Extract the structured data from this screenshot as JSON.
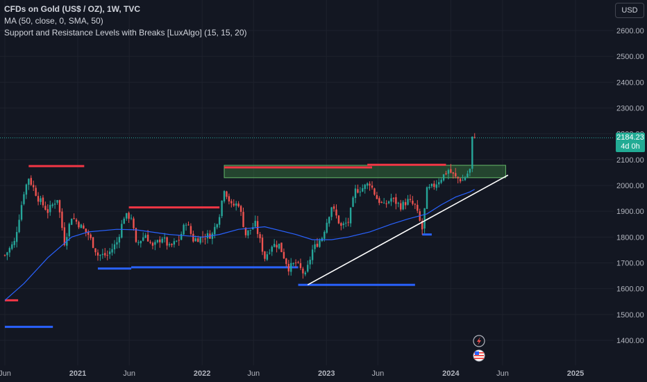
{
  "legend": {
    "title": "CFDs on Gold (US$ / OZ), 1W, TVC",
    "line2": "MA (50, close, 0, SMA, 50)",
    "line3": "Support and Resistance Levels with Breaks [LuxAlgo] (15, 15, 20)"
  },
  "currency": "USD",
  "price_label": {
    "price": "2184.23",
    "countdown": "4d 0h"
  },
  "colors": {
    "background": "#131722",
    "up": "#26a69a",
    "down": "#ef5350",
    "ma": "#2962ff",
    "resistance": "#f23645",
    "support": "#2962ff",
    "trendline": "#ffffff",
    "zone_fill": "#4caf50",
    "text": "#b2b5be"
  },
  "event_icons": [
    "lightning-icon",
    "us-flag-icon"
  ],
  "chart_data": {
    "type": "candlestick",
    "y_axis": {
      "ticks": [
        "2600.00",
        "2500.00",
        "2400.00",
        "2300.00",
        "2200.00",
        "2100.00",
        "2000.00",
        "1900.00",
        "1800.00",
        "1700.00",
        "1600.00",
        "1500.00",
        "1400.00"
      ],
      "range": [
        1350,
        2690
      ]
    },
    "x_axis": {
      "labels": [
        "Jun",
        "2021",
        "Jun",
        "2022",
        "Jun",
        "2023",
        "Jun",
        "2024",
        "Jun",
        "2025"
      ],
      "label_dates": [
        "2020-06-01",
        "2021-01-01",
        "2021-06-01",
        "2022-01-01",
        "2022-06-01",
        "2023-01-01",
        "2023-06-01",
        "2024-01-01",
        "2024-06-01",
        "2025-01-01"
      ]
    },
    "last_price": 2184.23,
    "close_path": [
      [
        "2020-06-01",
        1730
      ],
      [
        "2020-06-29",
        1780
      ],
      [
        "2020-07-27",
        1975
      ],
      [
        "2020-08-10",
        2030
      ],
      [
        "2020-09-07",
        1950
      ],
      [
        "2020-10-05",
        1900
      ],
      [
        "2020-11-02",
        1950
      ],
      [
        "2020-11-23",
        1780
      ],
      [
        "2020-12-14",
        1880
      ],
      [
        "2021-01-04",
        1850
      ],
      [
        "2021-02-01",
        1810
      ],
      [
        "2021-03-01",
        1730
      ],
      [
        "2021-03-29",
        1730
      ],
      [
        "2021-04-26",
        1780
      ],
      [
        "2021-05-17",
        1880
      ],
      [
        "2021-06-07",
        1880
      ],
      [
        "2021-06-21",
        1770
      ],
      [
        "2021-07-19",
        1810
      ],
      [
        "2021-08-09",
        1760
      ],
      [
        "2021-09-06",
        1800
      ],
      [
        "2021-09-27",
        1760
      ],
      [
        "2021-10-25",
        1790
      ],
      [
        "2021-11-15",
        1860
      ],
      [
        "2021-12-06",
        1790
      ],
      [
        "2022-01-03",
        1800
      ],
      [
        "2022-01-31",
        1810
      ],
      [
        "2022-02-21",
        1890
      ],
      [
        "2022-03-07",
        1990
      ],
      [
        "2022-03-28",
        1920
      ],
      [
        "2022-04-18",
        1930
      ],
      [
        "2022-05-09",
        1810
      ],
      [
        "2022-06-06",
        1850
      ],
      [
        "2022-07-04",
        1720
      ],
      [
        "2022-07-25",
        1770
      ],
      [
        "2022-08-15",
        1770
      ],
      [
        "2022-09-12",
        1680
      ],
      [
        "2022-10-03",
        1700
      ],
      [
        "2022-10-31",
        1650
      ],
      [
        "2022-11-21",
        1750
      ],
      [
        "2022-12-19",
        1800
      ],
      [
        "2023-01-16",
        1920
      ],
      [
        "2023-02-13",
        1840
      ],
      [
        "2023-03-06",
        1860
      ],
      [
        "2023-03-27",
        1980
      ],
      [
        "2023-04-17",
        1990
      ],
      [
        "2023-05-08",
        2010
      ],
      [
        "2023-05-29",
        1950
      ],
      [
        "2023-06-19",
        1920
      ],
      [
        "2023-07-10",
        1950
      ],
      [
        "2023-08-07",
        1920
      ],
      [
        "2023-08-28",
        1940
      ],
      [
        "2023-09-18",
        1920
      ],
      [
        "2023-10-09",
        1830
      ],
      [
        "2023-10-23",
        1980
      ],
      [
        "2023-11-13",
        2000
      ],
      [
        "2023-12-04",
        2030
      ],
      [
        "2023-12-25",
        2060
      ],
      [
        "2024-01-15",
        2030
      ],
      [
        "2024-02-05",
        2020
      ],
      [
        "2024-02-26",
        2060
      ],
      [
        "2024-03-04",
        2180
      ],
      [
        "2024-03-11",
        2184.23
      ]
    ],
    "moving_average": {
      "name": "MA (50, close, 0, SMA, 50)",
      "points": [
        [
          "2020-06-01",
          1555
        ],
        [
          "2020-07-27",
          1620
        ],
        [
          "2020-10-05",
          1720
        ],
        [
          "2020-12-14",
          1800
        ],
        [
          "2021-02-01",
          1820
        ],
        [
          "2021-04-26",
          1830
        ],
        [
          "2021-06-21",
          1828
        ],
        [
          "2021-09-27",
          1810
        ],
        [
          "2022-01-03",
          1800
        ],
        [
          "2022-02-21",
          1810
        ],
        [
          "2022-04-18",
          1830
        ],
        [
          "2022-07-04",
          1840
        ],
        [
          "2022-10-03",
          1810
        ],
        [
          "2022-11-21",
          1790
        ],
        [
          "2023-01-16",
          1790
        ],
        [
          "2023-03-06",
          1800
        ],
        [
          "2023-05-08",
          1820
        ],
        [
          "2023-07-10",
          1850
        ],
        [
          "2023-08-28",
          1870
        ],
        [
          "2023-10-23",
          1890
        ],
        [
          "2023-12-04",
          1925
        ],
        [
          "2024-01-15",
          1955
        ],
        [
          "2024-02-26",
          1975
        ],
        [
          "2024-03-11",
          1985
        ]
      ]
    },
    "resistance_levels": [
      {
        "start": "2020-06-01",
        "end": "2020-07-10",
        "price": 1555
      },
      {
        "start": "2020-08-10",
        "end": "2021-01-20",
        "price": 2075
      },
      {
        "start": "2021-05-31",
        "end": "2022-02-21",
        "price": 1915
      },
      {
        "start": "2022-03-07",
        "end": "2023-05-15",
        "price": 2070
      },
      {
        "start": "2023-05-01",
        "end": "2023-12-18",
        "price": 2080
      }
    ],
    "support_levels": [
      {
        "start": "2020-06-01",
        "end": "2020-10-20",
        "price": 1452
      },
      {
        "start": "2021-03-01",
        "end": "2021-06-07",
        "price": 1678
      },
      {
        "start": "2021-06-07",
        "end": "2022-10-10",
        "price": 1683
      },
      {
        "start": "2022-10-10",
        "end": "2023-09-18",
        "price": 1615
      },
      {
        "start": "2023-10-09",
        "end": "2023-11-06",
        "price": 1810
      }
    ],
    "zone": {
      "start": "2022-03-07",
      "end": "2024-06-10",
      "low": 2030,
      "high": 2078
    },
    "trendline": {
      "start": [
        "2022-11-07",
        1615
      ],
      "end": [
        "2024-06-17",
        2040
      ]
    }
  }
}
